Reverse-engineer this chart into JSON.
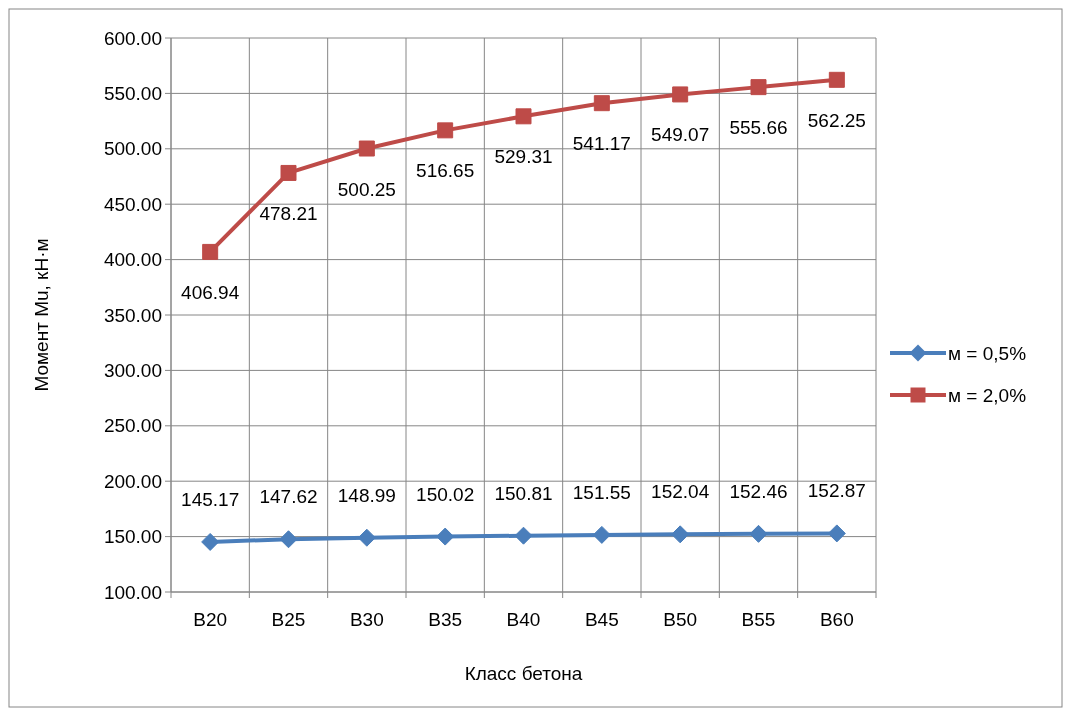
{
  "chart_data": {
    "type": "line",
    "xlabel": "Класс бетона",
    "ylabel": "Момент Мu, кН·м",
    "categories": [
      "B20",
      "B25",
      "B30",
      "B35",
      "B40",
      "B45",
      "B50",
      "B55",
      "B60"
    ],
    "series": [
      {
        "name": "м = 0,5%",
        "color": "#4a7ebb",
        "marker": "diamond",
        "values": [
          145.17,
          147.62,
          148.99,
          150.02,
          150.81,
          151.55,
          152.04,
          152.46,
          152.87
        ]
      },
      {
        "name": "м = 2,0%",
        "color": "#be4b48",
        "marker": "square",
        "values": [
          406.94,
          478.21,
          500.25,
          516.65,
          529.31,
          541.17,
          549.07,
          555.66,
          562.25
        ]
      }
    ],
    "ylim": [
      100,
      600
    ],
    "yticks": [
      {
        "value": 100,
        "label": "100.00"
      },
      {
        "value": 150,
        "label": "150.00"
      },
      {
        "value": 200,
        "label": "200.00"
      },
      {
        "value": 250,
        "label": "250.00"
      },
      {
        "value": 300,
        "label": "300.00"
      },
      {
        "value": 350,
        "label": "350.00"
      },
      {
        "value": 400,
        "label": "400.00"
      },
      {
        "value": 450,
        "label": "450.00"
      },
      {
        "value": 500,
        "label": "500.00"
      },
      {
        "value": 550,
        "label": "550.00"
      },
      {
        "value": 600,
        "label": "600.00"
      }
    ],
    "grid": true,
    "legend": "right",
    "data_labels": true,
    "line_style": "solid"
  }
}
